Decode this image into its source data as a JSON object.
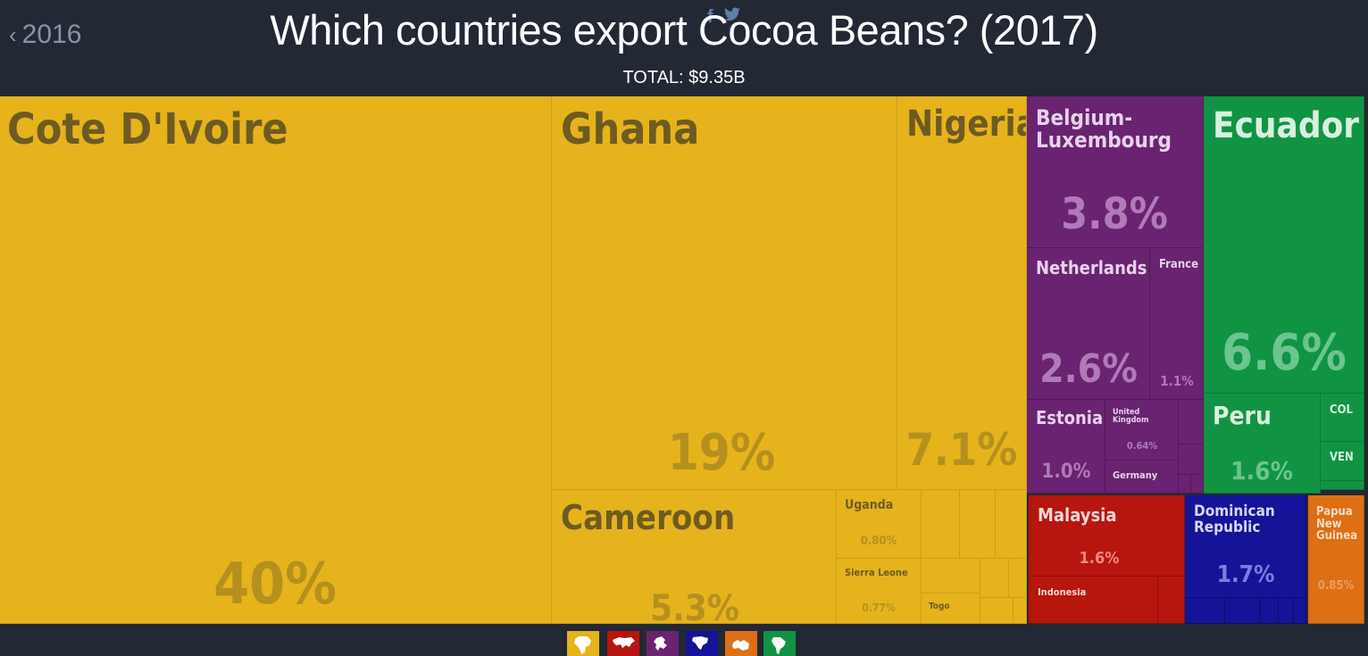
{
  "header": {
    "back_label": "2016",
    "title": "Which countries export Cocoa Beans? (2017)",
    "subtitle": "TOTAL: $9.35B",
    "share_facebook": "f",
    "share_twitter": "❦"
  },
  "colors": {
    "africa": "#e6b31c",
    "europe": "#6a2370",
    "south_america": "#109444",
    "asia": "#b7160e",
    "north_america": "#151398",
    "oceania": "#dd6f15",
    "background": "#222834"
  },
  "chart_data": {
    "type": "treemap",
    "total": "$9.35B",
    "cells": [
      {
        "name": "Cote D'Ivoire",
        "share": "40%",
        "region": "africa"
      },
      {
        "name": "Ghana",
        "share": "19%",
        "region": "africa"
      },
      {
        "name": "Nigeria",
        "share": "7.1%",
        "region": "africa"
      },
      {
        "name": "Cameroon",
        "share": "5.3%",
        "region": "africa"
      },
      {
        "name": "Uganda",
        "share": "0.80%",
        "region": "africa"
      },
      {
        "name": "Sierra Leone",
        "share": "0.77%",
        "region": "africa"
      },
      {
        "name": "Togo",
        "share": "",
        "region": "africa"
      },
      {
        "name": "Belgium-Luxembourg",
        "share": "3.8%",
        "region": "europe"
      },
      {
        "name": "Netherlands",
        "share": "2.6%",
        "region": "europe"
      },
      {
        "name": "France",
        "share": "1.1%",
        "region": "europe"
      },
      {
        "name": "Estonia",
        "share": "1.0%",
        "region": "europe"
      },
      {
        "name": "United Kingdom",
        "share": "0.64%",
        "region": "europe"
      },
      {
        "name": "Germany",
        "share": "",
        "region": "europe"
      },
      {
        "name": "Ecuador",
        "share": "6.6%",
        "region": "south_america"
      },
      {
        "name": "Peru",
        "share": "1.6%",
        "region": "south_america"
      },
      {
        "name": "COL",
        "share": "",
        "region": "south_america"
      },
      {
        "name": "VEN",
        "share": "",
        "region": "south_america"
      },
      {
        "name": "Malaysia",
        "share": "1.6%",
        "region": "asia"
      },
      {
        "name": "Indonesia",
        "share": "",
        "region": "asia"
      },
      {
        "name": "Dominican Republic",
        "share": "1.7%",
        "region": "north_america"
      },
      {
        "name": "Papua New Guinea",
        "share": "0.85%",
        "region": "oceania"
      }
    ]
  },
  "legend": [
    {
      "region": "africa",
      "icon": "africa-icon"
    },
    {
      "region": "asia",
      "icon": "asia-icon"
    },
    {
      "region": "europe",
      "icon": "europe-icon"
    },
    {
      "region": "north_america",
      "icon": "north-america-icon"
    },
    {
      "region": "oceania",
      "icon": "oceania-icon"
    },
    {
      "region": "south_america",
      "icon": "south-america-icon"
    }
  ]
}
